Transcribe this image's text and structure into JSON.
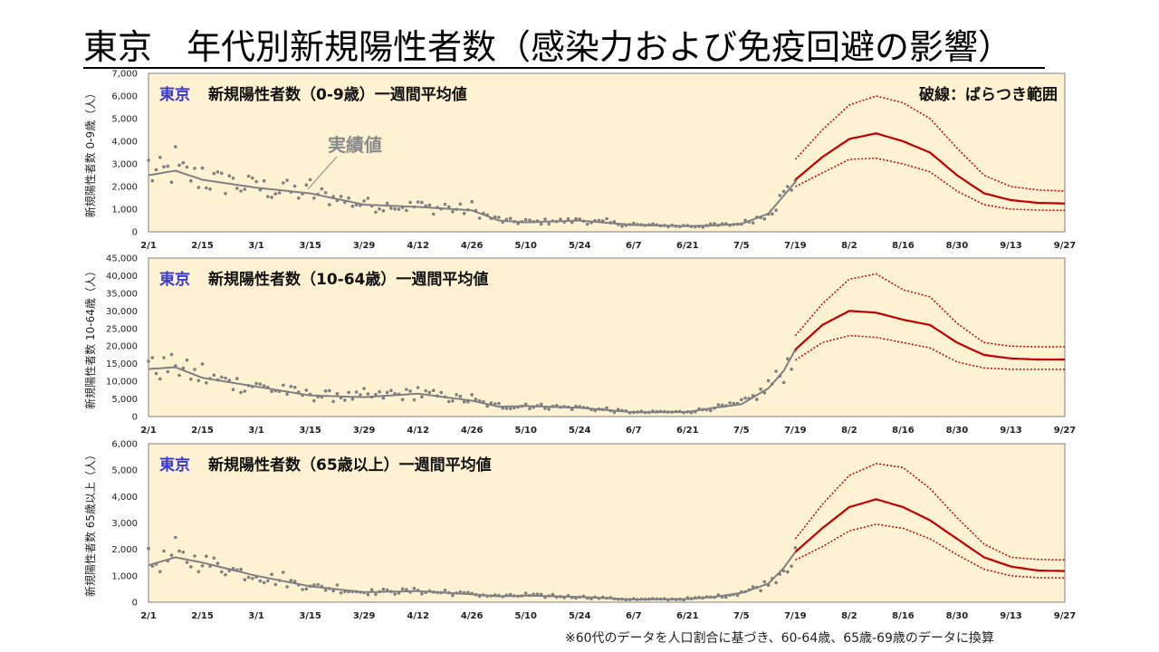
{
  "title": "東京　年代別新規陽性者数（感染力および免疫回避の影響）",
  "footnote": "※60代のデータを人口割合に基づき、60-64歳、65歳-69歳のデータに換算",
  "colors": {
    "panel_bg": "#fff2d2",
    "actual": "#808080",
    "forecast": "#c00000",
    "prefix": "#3a3ad0"
  },
  "chart_data": [
    {
      "type": "line",
      "prefix": "東京",
      "title": "新規陽性者数（0-9歳）一週間平均値",
      "ylabel": "新規陽性者数 0-9歳（人）",
      "ylim": [
        0,
        7000
      ],
      "yticks": [
        "0",
        "1,000",
        "2,000",
        "3,000",
        "4,000",
        "5,000",
        "6,000",
        "7,000"
      ],
      "xticks": [
        "2/1",
        "2/15",
        "3/1",
        "3/15",
        "3/29",
        "4/12",
        "4/26",
        "5/10",
        "5/24",
        "6/7",
        "6/21",
        "7/5",
        "7/19",
        "8/2",
        "8/16",
        "8/30",
        "9/13",
        "9/27"
      ],
      "annotation_right": "破線：ばらつき範囲",
      "annotation_actual": "実績値",
      "actual_day": [
        0,
        7,
        14,
        28,
        42,
        56,
        70,
        84,
        91,
        98,
        112,
        126,
        140,
        147,
        154,
        161,
        165,
        168
      ],
      "actual_val": [
        2500,
        2700,
        2300,
        1950,
        1700,
        1200,
        1100,
        950,
        500,
        420,
        500,
        300,
        250,
        280,
        350,
        800,
        1600,
        2200
      ],
      "forecast_day": [
        168,
        175,
        182,
        189,
        196,
        203,
        210,
        217,
        224,
        231,
        238
      ],
      "mid": [
        2300,
        3300,
        4100,
        4350,
        4000,
        3500,
        2500,
        1700,
        1400,
        1280,
        1250
      ],
      "high": [
        3200,
        4500,
        5600,
        6000,
        5700,
        5000,
        3700,
        2500,
        2000,
        1850,
        1800
      ],
      "low": [
        2000,
        2600,
        3200,
        3250,
        3000,
        2650,
        1800,
        1200,
        1000,
        960,
        950
      ]
    },
    {
      "type": "line",
      "prefix": "東京",
      "title": "新規陽性者数（10-64歳）一週間平均値",
      "ylabel": "新規陽性者数 10-64歳（人）",
      "ylim": [
        0,
        45000
      ],
      "yticks": [
        "0",
        "5,000",
        "10,000",
        "15,000",
        "20,000",
        "25,000",
        "30,000",
        "35,000",
        "40,000",
        "45,000"
      ],
      "xticks": [
        "2/1",
        "2/15",
        "3/1",
        "3/15",
        "3/29",
        "4/12",
        "4/26",
        "5/10",
        "5/24",
        "6/7",
        "6/21",
        "7/5",
        "7/19",
        "8/2",
        "8/16",
        "8/30",
        "9/13",
        "9/27"
      ],
      "actual_day": [
        0,
        7,
        14,
        28,
        42,
        56,
        70,
        84,
        91,
        98,
        112,
        126,
        140,
        147,
        154,
        161,
        165,
        168
      ],
      "actual_val": [
        13500,
        14000,
        11000,
        8500,
        6000,
        5500,
        6500,
        4500,
        2800,
        3000,
        2500,
        1200,
        1300,
        2500,
        3500,
        8000,
        13000,
        19000
      ],
      "forecast_day": [
        168,
        175,
        182,
        189,
        196,
        203,
        210,
        217,
        224,
        231,
        238
      ],
      "mid": [
        19000,
        26000,
        30000,
        29500,
        27500,
        26000,
        21000,
        17500,
        16500,
        16200,
        16200
      ],
      "high": [
        23000,
        32000,
        39000,
        40500,
        36000,
        34000,
        26500,
        21000,
        20000,
        19800,
        19800
      ],
      "low": [
        16000,
        21000,
        23000,
        22500,
        21000,
        19500,
        15500,
        13800,
        13400,
        13400,
        13400
      ]
    },
    {
      "type": "line",
      "prefix": "東京",
      "title": "新規陽性者数（65歳以上）一週間平均値",
      "ylabel": "新規陽性者数 65歳以上（人）",
      "ylim": [
        0,
        6000
      ],
      "yticks": [
        "0",
        "1,000",
        "2,000",
        "3,000",
        "4,000",
        "5,000",
        "6,000"
      ],
      "xticks": [
        "2/1",
        "2/15",
        "3/1",
        "3/15",
        "3/29",
        "4/12",
        "4/26",
        "5/10",
        "5/24",
        "6/7",
        "6/21",
        "7/5",
        "7/19",
        "8/2",
        "8/16",
        "8/30",
        "9/13",
        "9/27"
      ],
      "actual_day": [
        0,
        7,
        14,
        28,
        42,
        56,
        70,
        84,
        91,
        98,
        112,
        126,
        140,
        147,
        154,
        161,
        165,
        168
      ],
      "actual_val": [
        1400,
        1700,
        1500,
        1000,
        600,
        380,
        420,
        300,
        220,
        250,
        200,
        100,
        120,
        200,
        350,
        700,
        1300,
        1900
      ],
      "forecast_day": [
        168,
        175,
        182,
        189,
        196,
        203,
        210,
        217,
        224,
        231,
        238
      ],
      "mid": [
        1900,
        2800,
        3600,
        3900,
        3600,
        3100,
        2400,
        1700,
        1350,
        1200,
        1180
      ],
      "high": [
        2400,
        3700,
        4800,
        5250,
        5100,
        4300,
        3200,
        2200,
        1700,
        1620,
        1600
      ],
      "low": [
        1600,
        2100,
        2700,
        2950,
        2800,
        2400,
        1800,
        1250,
        1000,
        930,
        920
      ]
    }
  ]
}
